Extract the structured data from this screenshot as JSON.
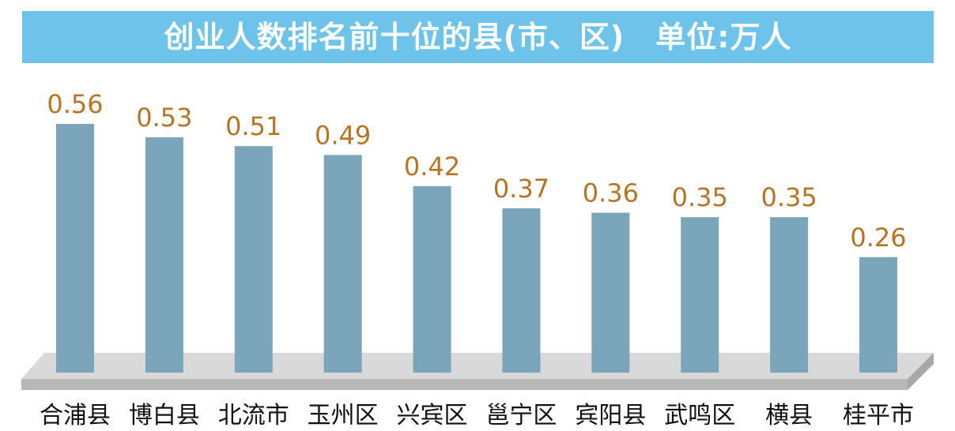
{
  "chart_data": {
    "type": "bar",
    "title": "创业人数排名前十位的县(市、区)　单位:万人",
    "categories": [
      "合浦县",
      "博白县",
      "北流市",
      "玉州区",
      "兴宾区",
      "邕宁区",
      "宾阳县",
      "武鸣区",
      "横县",
      "桂平市"
    ],
    "values": [
      0.56,
      0.53,
      0.51,
      0.49,
      0.42,
      0.37,
      0.36,
      0.35,
      0.35,
      0.26
    ],
    "value_labels": [
      "0.56",
      "0.53",
      "0.51",
      "0.49",
      "0.42",
      "0.37",
      "0.36",
      "0.35",
      "0.35",
      "0.26"
    ],
    "xlabel": "",
    "ylabel": "",
    "ylim": [
      0,
      0.6
    ],
    "grid": false,
    "legend": "none"
  },
  "colors": {
    "title_bg": "#6ec3ea",
    "title_text": "#ffffff",
    "bar": "#7aa5bb",
    "value_label": "#b87424",
    "category_label": "#111111",
    "floor": "#d9d9d9",
    "floor_edge": "#b8b8b8"
  }
}
